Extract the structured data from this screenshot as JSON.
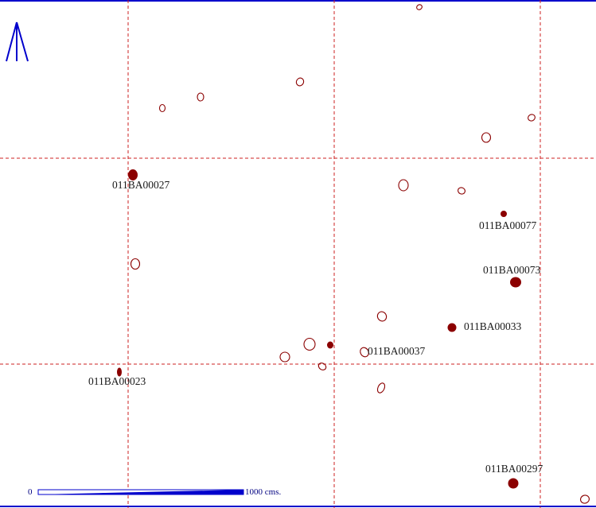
{
  "colors": {
    "frame": "#0000cc",
    "grid": "#cc2222",
    "tree": "#8b0000",
    "scale": "#0000cc",
    "north_arrow": "#0000cc"
  },
  "north_arrow": {
    "icon": "north-arrow-icon"
  },
  "scale_bar": {
    "start_label": "0",
    "end_label": "1000 cms."
  },
  "labels": {
    "tag_027": "011BA00027",
    "tag_077": "011BA00077",
    "tag_073": "011BA00073",
    "tag_033": "011BA00033",
    "tag_037": "011BA00037",
    "tag_023": "011BA00023",
    "tag_297": "011BA00297"
  }
}
